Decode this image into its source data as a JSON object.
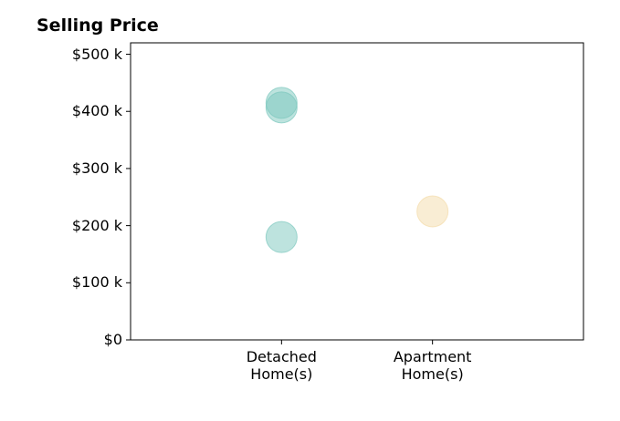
{
  "chart_data": {
    "type": "scatter",
    "title": "Selling Price",
    "xlim": [
      0,
      3
    ],
    "xticks": [
      {
        "value": 1,
        "label": "Detached\nHome(s)"
      },
      {
        "value": 2,
        "label": "Apartment\nHome(s)"
      }
    ],
    "ylim": [
      0,
      520000
    ],
    "yticks": [
      {
        "value": 0,
        "label": "$0"
      },
      {
        "value": 100000,
        "label": "$100 k"
      },
      {
        "value": 200000,
        "label": "$200 k"
      },
      {
        "value": 300000,
        "label": "$300 k"
      },
      {
        "value": 400000,
        "label": "$400 k"
      },
      {
        "value": 500000,
        "label": "$500 k"
      }
    ],
    "series": [
      {
        "color": "#7cc7bd",
        "x": [
          1,
          1,
          1
        ],
        "values": [
          415000,
          407000,
          180000
        ]
      },
      {
        "color": "#f3dcaa",
        "x": [
          2
        ],
        "values": [
          225000
        ]
      }
    ]
  }
}
